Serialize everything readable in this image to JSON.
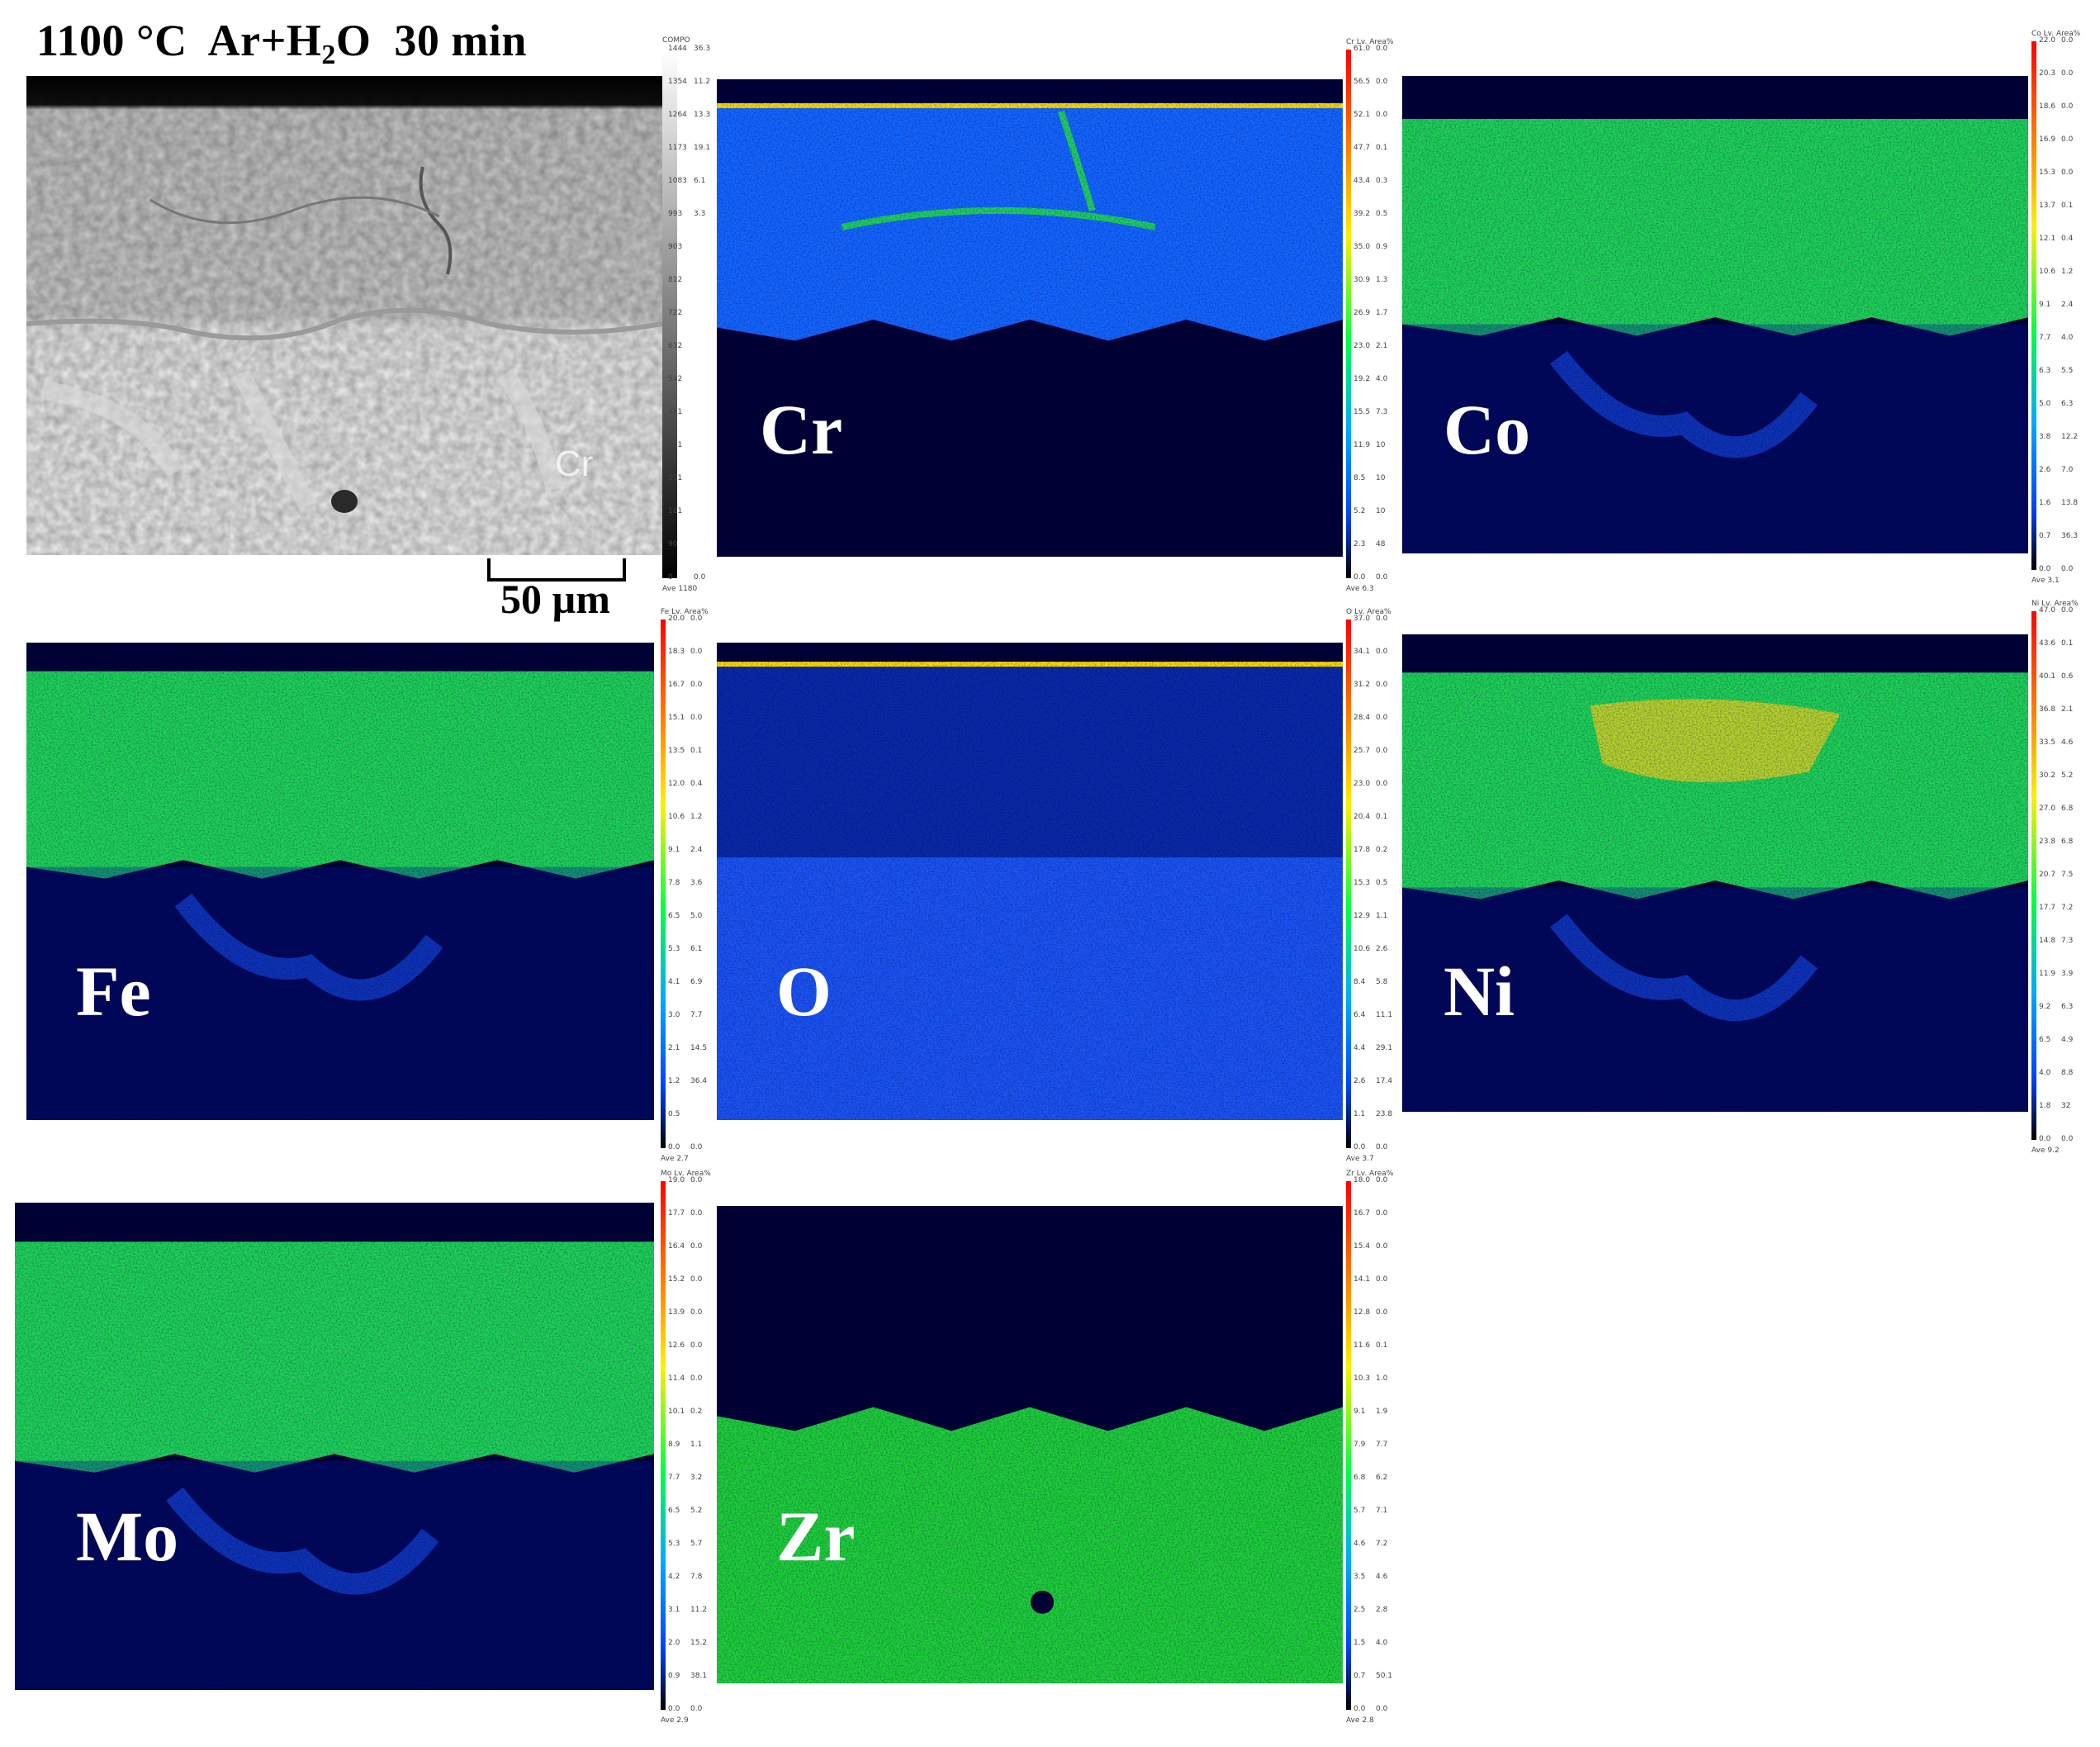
{
  "title": {
    "temp": "1100 °C",
    "atm_pre": "Ar+H",
    "atm_sub": "2",
    "atm_post": "O",
    "time": "30 min"
  },
  "scale_bar": {
    "label": "50 µm"
  },
  "sem": {
    "label": "COMPO",
    "overlay_text": "Cr",
    "ticks": [
      "1444",
      "1354",
      "1264",
      "1173",
      "1083",
      "993",
      "903",
      "812",
      "722",
      "632",
      "542",
      "451",
      "361",
      "271",
      "181",
      "90",
      "0"
    ],
    "ticks2": [
      "36.3",
      "11.2",
      "13.3",
      "19.1",
      "6.1",
      "3.3",
      "",
      "",
      "",
      "",
      "",
      "",
      "",
      "",
      "",
      "",
      "0.0"
    ],
    "footer": "Ave 1180"
  },
  "maps": [
    {
      "element": "Cr",
      "head": "Cr Lv. Area%",
      "footer": "Ave 6.3",
      "ticks": [
        "61.0",
        "56.5",
        "52.1",
        "47.7",
        "43.4",
        "39.2",
        "35.0",
        "30.9",
        "26.9",
        "23.0",
        "19.2",
        "15.5",
        "11.9",
        "8.5",
        "5.2",
        "2.3",
        "0.0"
      ],
      "ticks2": [
        "0.0",
        "0.0",
        "0.0",
        "0.1",
        "0.3",
        "0.5",
        "0.9",
        "1.3",
        "1.7",
        "2.1",
        "4.0",
        "7.3",
        "10",
        "10",
        "10",
        "48",
        "0.0"
      ]
    },
    {
      "element": "Co",
      "head": "Co Lv. Area%",
      "footer": "Ave 3.1",
      "ticks": [
        "22.0",
        "20.3",
        "18.6",
        "16.9",
        "15.3",
        "13.7",
        "12.1",
        "10.6",
        "9.1",
        "7.7",
        "6.3",
        "5.0",
        "3.8",
        "2.6",
        "1.6",
        "0.7",
        "0.0"
      ],
      "ticks2": [
        "0.0",
        "0.0",
        "0.0",
        "0.0",
        "0.0",
        "0.1",
        "0.4",
        "1.2",
        "2.4",
        "4.0",
        "5.5",
        "6.3",
        "12.2",
        "7.0",
        "13.8",
        "36.3",
        "0.0"
      ]
    },
    {
      "element": "Fe",
      "head": "Fe Lv. Area%",
      "footer": "Ave 2.7",
      "ticks": [
        "20.0",
        "18.3",
        "16.7",
        "15.1",
        "13.5",
        "12.0",
        "10.6",
        "9.1",
        "7.8",
        "6.5",
        "5.3",
        "4.1",
        "3.0",
        "2.1",
        "1.2",
        "0.5",
        "0.0"
      ],
      "ticks2": [
        "0.0",
        "0.0",
        "0.0",
        "0.0",
        "0.1",
        "0.4",
        "1.2",
        "2.4",
        "3.6",
        "5.0",
        "6.1",
        "6.9",
        "7.7",
        "14.5",
        "36.4",
        "",
        "0.0"
      ]
    },
    {
      "element": "O",
      "head": "O Lv. Area%",
      "footer": "Ave 3.7",
      "ticks": [
        "37.0",
        "34.1",
        "31.2",
        "28.4",
        "25.7",
        "23.0",
        "20.4",
        "17.8",
        "15.3",
        "12.9",
        "10.6",
        "8.4",
        "6.4",
        "4.4",
        "2.6",
        "1.1",
        "0.0"
      ],
      "ticks2": [
        "0.0",
        "0.0",
        "0.0",
        "0.0",
        "0.0",
        "0.0",
        "0.1",
        "0.2",
        "0.5",
        "1.1",
        "2.6",
        "5.8",
        "11.1",
        "29.1",
        "17.4",
        "23.8",
        "0.0"
      ]
    },
    {
      "element": "Ni",
      "head": "Ni Lv. Area%",
      "footer": "Ave 9.2",
      "ticks": [
        "47.0",
        "43.6",
        "40.1",
        "36.8",
        "33.5",
        "30.2",
        "27.0",
        "23.8",
        "20.7",
        "17.7",
        "14.8",
        "11.9",
        "9.2",
        "6.5",
        "4.0",
        "1.8",
        "0.0"
      ],
      "ticks2": [
        "0.0",
        "0.1",
        "0.6",
        "2.1",
        "4.6",
        "5.2",
        "6.8",
        "6.8",
        "7.5",
        "7.2",
        "7.3",
        "3.9",
        "6.3",
        "4.9",
        "8.8",
        "32",
        "0.0"
      ]
    },
    {
      "element": "Mo",
      "head": "Mo Lv. Area%",
      "footer": "Ave 2.9",
      "ticks": [
        "19.0",
        "17.7",
        "16.4",
        "15.2",
        "13.9",
        "12.6",
        "11.4",
        "10.1",
        "8.9",
        "7.7",
        "6.5",
        "5.3",
        "4.2",
        "3.1",
        "2.0",
        "0.9",
        "0.0"
      ],
      "ticks2": [
        "0.0",
        "0.0",
        "0.0",
        "0.0",
        "0.0",
        "0.0",
        "0.0",
        "0.2",
        "1.1",
        "3.2",
        "5.2",
        "5.7",
        "7.8",
        "11.2",
        "15.2",
        "38.1",
        "0.0"
      ]
    },
    {
      "element": "Zr",
      "head": "Zr Lv. Area%",
      "footer": "Ave 2.8",
      "ticks": [
        "18.0",
        "16.7",
        "15.4",
        "14.1",
        "12.8",
        "11.6",
        "10.3",
        "9.1",
        "7.9",
        "6.8",
        "5.7",
        "4.6",
        "3.5",
        "2.5",
        "1.5",
        "0.7",
        "0.0"
      ],
      "ticks2": [
        "0.0",
        "0.0",
        "0.0",
        "0.0",
        "0.0",
        "0.1",
        "1.0",
        "1.9",
        "7.7",
        "6.2",
        "7.1",
        "7.2",
        "4.6",
        "2.8",
        "4.0",
        "50.1",
        "0.0"
      ]
    }
  ],
  "colors": {
    "background": "#000033",
    "scale_top": "#ff0000",
    "scale_mid": "#00ff44",
    "scale_low": "#0044ff"
  }
}
